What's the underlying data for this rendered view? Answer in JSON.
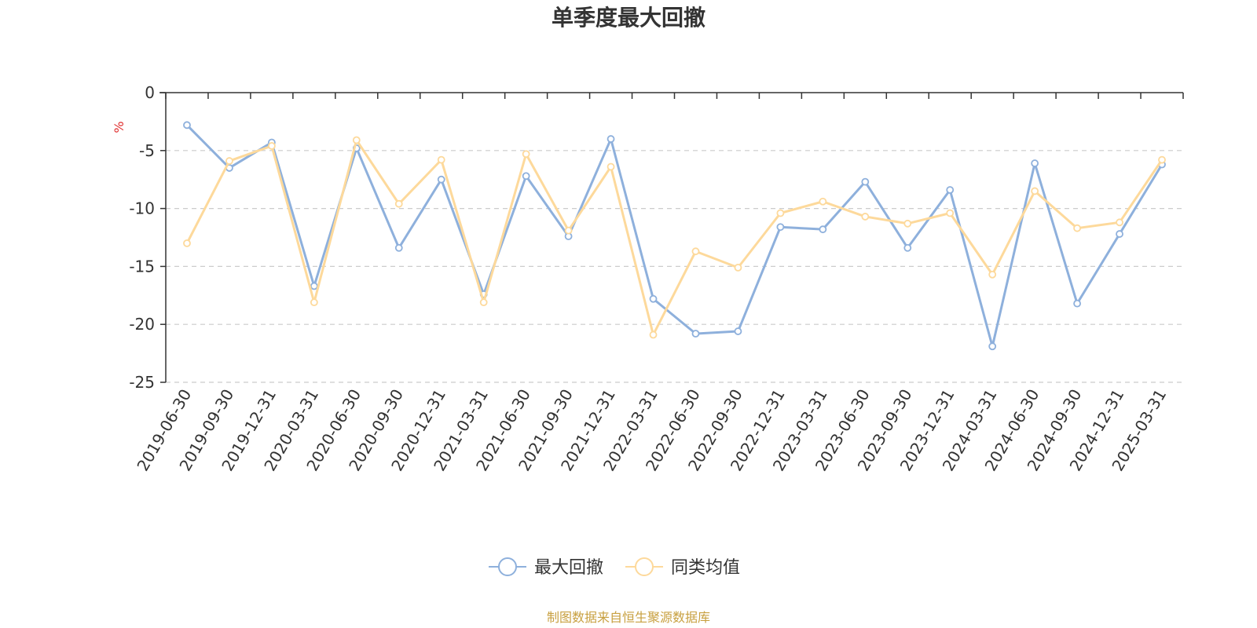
{
  "chart_data": {
    "type": "line",
    "title": "单季度最大回撤",
    "ylabel": "%",
    "ylim": [
      -25,
      0
    ],
    "yticks": [
      0,
      -5,
      -10,
      -15,
      -20,
      -25
    ],
    "grid": true,
    "legend_position": "bottom",
    "categories": [
      "2019-06-30",
      "2019-09-30",
      "2019-12-31",
      "2020-03-31",
      "2020-06-30",
      "2020-09-30",
      "2020-12-31",
      "2021-03-31",
      "2021-06-30",
      "2021-09-30",
      "2021-12-31",
      "2022-03-31",
      "2022-06-30",
      "2022-09-30",
      "2022-12-31",
      "2023-03-31",
      "2023-06-30",
      "2023-09-30",
      "2023-12-31",
      "2024-03-31",
      "2024-06-30",
      "2024-09-30",
      "2024-12-31",
      "2025-03-31"
    ],
    "series": [
      {
        "name": "最大回撤",
        "color": "#8eb0dc",
        "values": [
          -2.8,
          -6.5,
          -4.3,
          -16.7,
          -4.8,
          -13.4,
          -7.5,
          -17.4,
          -7.2,
          -12.4,
          -4.0,
          -17.8,
          -20.8,
          -20.6,
          -11.6,
          -11.8,
          -7.7,
          -13.4,
          -8.4,
          -21.9,
          -6.1,
          -18.2,
          -12.2,
          -6.2
        ]
      },
      {
        "name": "同类均值",
        "color": "#fdd99b",
        "values": [
          -13.0,
          -5.9,
          -4.6,
          -18.1,
          -4.1,
          -9.6,
          -5.8,
          -18.1,
          -5.3,
          -11.9,
          -6.4,
          -20.9,
          -13.7,
          -15.1,
          -10.4,
          -9.4,
          -10.7,
          -11.3,
          -10.4,
          -15.7,
          -8.5,
          -11.7,
          -11.2,
          -5.8
        ]
      }
    ]
  },
  "axis_color": "#333333",
  "unit_color": "#e03030",
  "grid_color": "#cccccc",
  "source": {
    "text": "制图数据来自恒生聚源数据库",
    "color": "#c8a040"
  }
}
